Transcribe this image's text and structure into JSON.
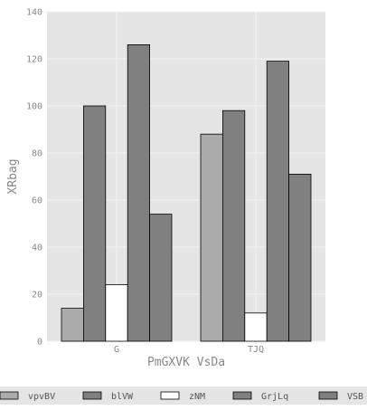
{
  "chart_data": {
    "type": "bar",
    "categories": [
      "G",
      "TJQ"
    ],
    "series": [
      {
        "name": "vpvBV",
        "color": "#ababab",
        "values": [
          14,
          88
        ]
      },
      {
        "name": "blVW",
        "color": "#808080",
        "values": [
          100,
          98
        ]
      },
      {
        "name": "zNM",
        "color": "#ffffff",
        "values": [
          24,
          12
        ]
      },
      {
        "name": "GrjLq",
        "color": "#808080",
        "values": [
          126,
          119
        ]
      },
      {
        "name": "VSB",
        "color": "#808080",
        "values": [
          54,
          71
        ]
      }
    ],
    "xlabel": "PmGXVK VsDa",
    "ylabel": "XRbag",
    "ylim": [
      0,
      140
    ],
    "yticks": [
      0,
      20,
      40,
      60,
      80,
      100,
      120,
      140
    ],
    "grid": true,
    "legend_position": "bottom"
  }
}
